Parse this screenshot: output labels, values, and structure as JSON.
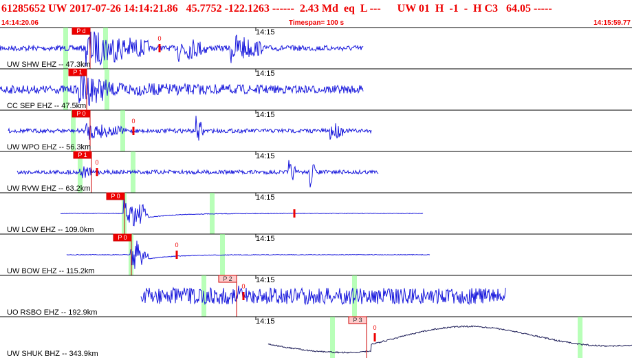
{
  "header": {
    "event": "61285652 UW 2017-07-26 14:14:21.86   45.7752 -122.1263 ------  2.43 Md  eq  L ---      UW 01  H  -1  -  H C3   64.05 -----",
    "start": "14:14:20.06",
    "timespan": "Timespan= 100 s",
    "end": "14:15:59.77"
  },
  "traces": [
    {
      "label": "UW SHW EHZ -- 47.3km",
      "time": "14:15",
      "phase": "P d",
      "marker": "0"
    },
    {
      "label": "CC SEP EHZ -- 47.5km",
      "time": "14:15",
      "phase": "P 1",
      "marker": null
    },
    {
      "label": "UW WPO EHZ -- 56.3km",
      "time": "14:15",
      "phase": "P 0",
      "marker": "0"
    },
    {
      "label": "UW RVW EHZ -- 63.2km",
      "time": "14:15",
      "phase": "P 1",
      "marker": "0"
    },
    {
      "label": "UW LCW EHZ -- 109.0km",
      "time": "14:15",
      "phase": "P 0",
      "marker": null
    },
    {
      "label": "UW BOW EHZ -- 115.2km",
      "time": "14:15",
      "phase": "P 0",
      "marker": "0"
    },
    {
      "label": "UO RSBO EHZ -- 192.9km",
      "time": "14:15",
      "phase": "P 2",
      "marker": "0"
    },
    {
      "label": "UW SHUK BHZ -- 343.9km",
      "time": "14:15",
      "phase": "P 3",
      "marker": "0"
    }
  ]
}
